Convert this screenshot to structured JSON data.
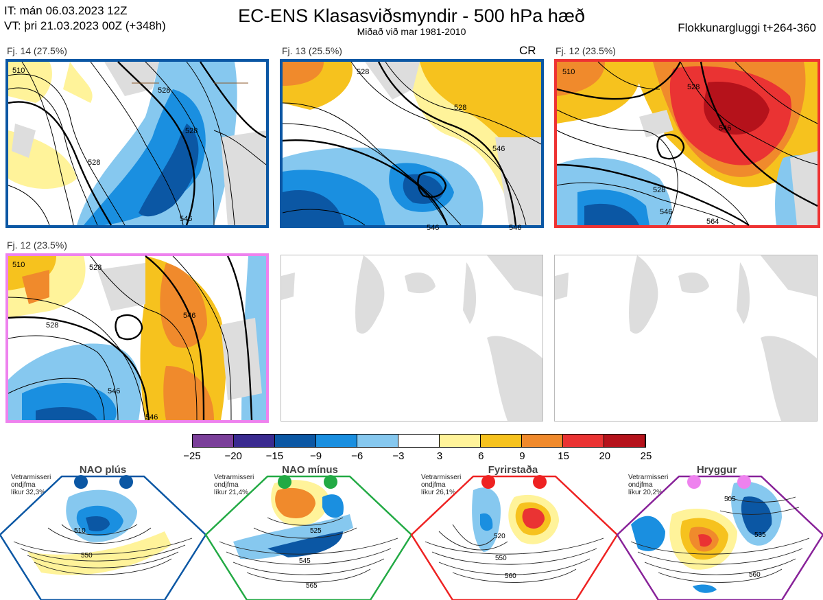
{
  "header": {
    "line1": "IT: mán 06.03.2023 12Z",
    "line2": "VT: þri 21.03.2023 00Z  (+348h)",
    "title": "EC-ENS Klasasviðsmyndir - 500 hPa hæð",
    "subtitle": "Miðað við mar 1981-2010",
    "window": "Flokkunargluggi t+264-360"
  },
  "panels": [
    {
      "label": "Fj. 14 (27.5%)",
      "border_color": "#0b57a4",
      "tag": "",
      "contours": [
        "510",
        "528",
        "528",
        "546",
        "528"
      ]
    },
    {
      "label": "Fj. 13 (25.5%)",
      "border_color": "#0b57a4",
      "tag": "CR",
      "contours": [
        "528",
        "546",
        "528",
        "546",
        "546"
      ]
    },
    {
      "label": "Fj. 12 (23.5%)",
      "border_color": "#ee3333",
      "tag": "",
      "contours": [
        "510",
        "528",
        "546",
        "528",
        "546",
        "564"
      ]
    },
    {
      "label": "Fj. 12 (23.5%)",
      "border_color": "#ee82ee",
      "tag": "",
      "contours": [
        "510",
        "528",
        "528",
        "546",
        "546",
        "546"
      ]
    }
  ],
  "colorbar": {
    "ticks": [
      "−25",
      "−20",
      "−15",
      "−9",
      "−6",
      "−3",
      "3",
      "6",
      "9",
      "15",
      "20",
      "25"
    ],
    "colors": [
      "#7b3f9a",
      "#3a2a90",
      "#0b57a4",
      "#1a8fe0",
      "#86c8ef",
      "#ffffff",
      "#fff39a",
      "#f6c21e",
      "#f08a2c",
      "#ea3333",
      "#b5121b"
    ]
  },
  "regimes": [
    {
      "name": "NAO plús",
      "note1": "Vetrarmisseri",
      "note2": "ondjfma",
      "note3": "líkur 32,3%",
      "dot_color": "#0b57a4",
      "border_color": "#0b57a4",
      "contours": [
        "510",
        "550"
      ]
    },
    {
      "name": "NAO mínus",
      "note1": "Vetrarmisseri",
      "note2": "ondjfma",
      "note3": "líkur 21,4%",
      "dot_color": "#22aa44",
      "border_color": "#22aa44",
      "contours": [
        "525",
        "545",
        "565"
      ]
    },
    {
      "name": "Fyrirstaða",
      "note1": "Vetrarmisseri",
      "note2": "ondjfma",
      "note3": "líkur 26,1%",
      "dot_color": "#ee2222",
      "border_color": "#ee2222",
      "contours": [
        "520",
        "550",
        "560"
      ]
    },
    {
      "name": "Hryggur",
      "note1": "Vetrarmisseri",
      "note2": "ondjfma",
      "note3": "líkur 20,2%",
      "dot_color": "#ee82ee",
      "border_color": "#882299",
      "contours": [
        "505",
        "535",
        "560"
      ]
    }
  ]
}
